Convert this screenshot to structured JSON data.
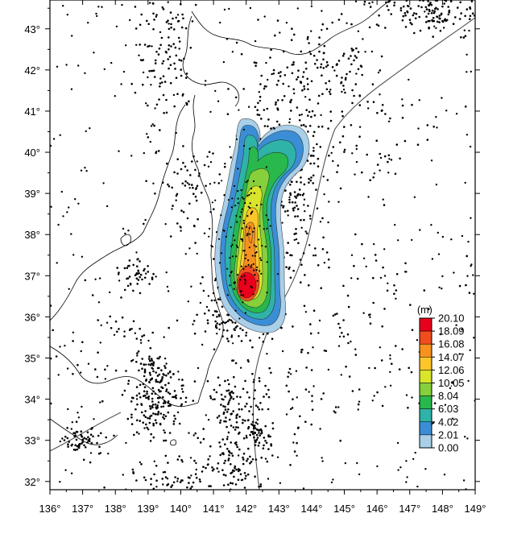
{
  "map": {
    "x_ticks": [
      "136°",
      "137°",
      "138°",
      "139°",
      "140°",
      "141°",
      "142°",
      "143°",
      "144°",
      "145°",
      "146°",
      "147°",
      "148°",
      "149°"
    ],
    "y_ticks": [
      "32°",
      "33°",
      "34°",
      "35°",
      "36°",
      "37°",
      "38°",
      "39°",
      "40°",
      "41°",
      "42°",
      "43°"
    ],
    "lon_range": [
      136,
      149
    ],
    "lat_range": [
      31.8,
      43.7
    ]
  },
  "legend": {
    "unit": "(m)",
    "labels": [
      "20.10",
      "18.09",
      "16.08",
      "14.07",
      "12.06",
      "10.05",
      "8.04",
      "6.03",
      "4.02",
      "2.01",
      "0.00"
    ],
    "colors": [
      "#e8001c",
      "#f04d1e",
      "#f7921f",
      "#fcc52a",
      "#d8e52a",
      "#85d03b",
      "#28b84c",
      "#2fb2a8",
      "#3b8ed6",
      "#a9cfe9",
      "#ffffff"
    ]
  },
  "colors": {
    "seismicity_dots": "#000000",
    "coastline": "#000000",
    "plate_boundary": "#444444",
    "background": "#ffffff"
  }
}
